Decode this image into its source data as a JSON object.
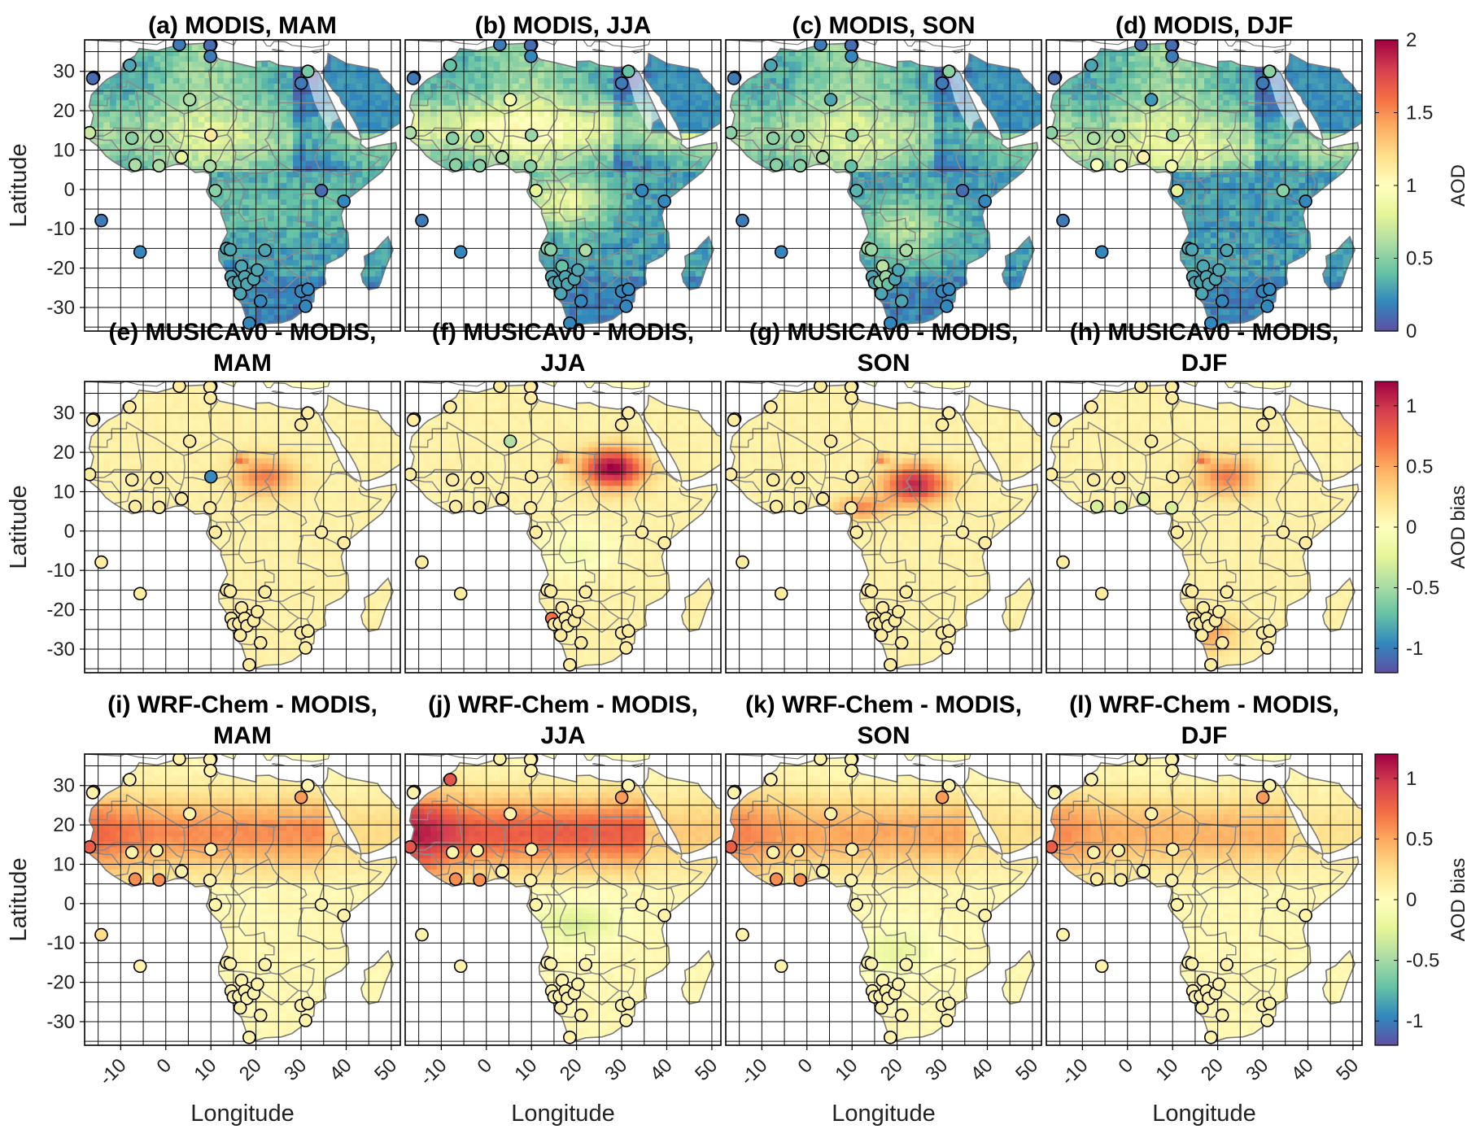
{
  "figure": {
    "x_label": "Longitude",
    "y_label": "Latitude",
    "lon_ticks": [
      "-10",
      "0",
      "10",
      "20",
      "30",
      "40",
      "50"
    ],
    "lat_ticks": [
      "30",
      "20",
      "10",
      "0",
      "-10",
      "-20",
      "-30"
    ],
    "lon_range": [
      -18,
      52
    ],
    "lat_range": [
      -36,
      38
    ]
  },
  "rows": [
    {
      "colorbar": {
        "label": "AOD",
        "range": [
          0,
          2
        ],
        "ticks": [
          "2",
          "1.5",
          "1",
          "0.5",
          "0"
        ],
        "colormap": "Spectral (reversed)"
      },
      "panels": [
        {
          "title": [
            "(a) MODIS, MAM"
          ]
        },
        {
          "title": [
            "(b) MODIS, JJA"
          ]
        },
        {
          "title": [
            "(c) MODIS, SON"
          ]
        },
        {
          "title": [
            "(d) MODIS, DJF"
          ]
        }
      ]
    },
    {
      "colorbar": {
        "label": "AOD bias",
        "range": [
          -1.2,
          1.2
        ],
        "ticks": [
          "1",
          "0.5",
          "0",
          "-0.5",
          "-1"
        ],
        "colormap": "Spectral (reversed)"
      },
      "panels": [
        {
          "title": [
            "(e) MUSICAv0 - MODIS,",
            "MAM"
          ]
        },
        {
          "title": [
            "(f) MUSICAv0 - MODIS,",
            "JJA"
          ]
        },
        {
          "title": [
            "(g) MUSICAv0 - MODIS,",
            "SON"
          ]
        },
        {
          "title": [
            "(h) MUSICAv0 - MODIS,",
            "DJF"
          ]
        }
      ]
    },
    {
      "colorbar": {
        "label": "AOD bias",
        "range": [
          -1.2,
          1.2
        ],
        "ticks": [
          "1",
          "0.5",
          "0",
          "-0.5",
          "-1"
        ],
        "colormap": "Spectral (reversed)"
      },
      "panels": [
        {
          "title": [
            "(i) WRF-Chem - MODIS,",
            "MAM"
          ]
        },
        {
          "title": [
            "(j) WRF-Chem - MODIS,",
            "JJA"
          ]
        },
        {
          "title": [
            "(k) WRF-Chem - MODIS,",
            "SON"
          ]
        },
        {
          "title": [
            "(l) WRF-Chem - MODIS,",
            "DJF"
          ]
        }
      ]
    }
  ],
  "colors": {
    "ocean": "#ffffff",
    "grid": "#111111",
    "borders": "#8a8a8a",
    "coast": "#7a7a7a",
    "colormap_stops": [
      "#5e4fa2",
      "#3288bd",
      "#66c2a5",
      "#abdda4",
      "#e6f598",
      "#ffffbf",
      "#fee08b",
      "#fdae61",
      "#f46d43",
      "#d53e4f",
      "#9e0142"
    ]
  }
}
